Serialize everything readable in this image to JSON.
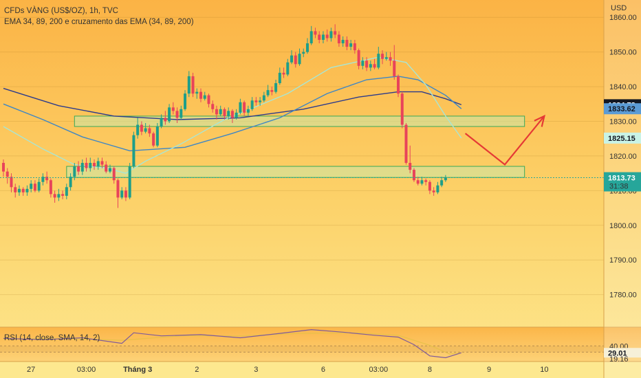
{
  "chart_data": {
    "type": "candlestick",
    "title": "CFDs VÀNG (US$/OZ), 1h, TVC",
    "subtitle": "EMA 34, 89, 200 e cruzamento das EMA (34, 89, 200)",
    "currency_label": "USD",
    "y_ticks": [
      "1860.00",
      "1850.00",
      "1840.00",
      "1830.00",
      "1820.00",
      "1810.00",
      "1800.00",
      "1790.00",
      "1780.00"
    ],
    "x_ticks": [
      "27",
      "03:00",
      "Tháng 3",
      "2",
      "3",
      "6",
      "03:00",
      "8",
      "9",
      "10"
    ],
    "ylim": [
      1771,
      1865
    ],
    "price_tags": [
      {
        "label": "1834.78",
        "value": 1834.78,
        "bg": "#131722",
        "fg": "#ffffff"
      },
      {
        "label": "1833.62",
        "value": 1833.62,
        "bg": "#5b9bd5",
        "fg": "#131722"
      },
      {
        "label": "1825.15",
        "value": 1825.15,
        "bg": "#c9f3e6",
        "fg": "#131722"
      }
    ],
    "current_price": {
      "label": "1813.73",
      "countdown": "31:38",
      "value": 1813.73,
      "bg": "#26a69a"
    },
    "candles": [
      [
        1818,
        1815.5,
        1819,
        1814
      ],
      [
        1815.5,
        1814,
        1816.5,
        1812
      ],
      [
        1814,
        1811,
        1815,
        1809.5
      ],
      [
        1811,
        1809.5,
        1812,
        1808
      ],
      [
        1809.5,
        1810.5,
        1811.5,
        1808.5
      ],
      [
        1810.5,
        1809.5,
        1811,
        1808.5
      ],
      [
        1809.5,
        1810.5,
        1811.5,
        1808.5
      ],
      [
        1810.5,
        1812,
        1813,
        1809.5
      ],
      [
        1812,
        1810,
        1813,
        1809.5
      ],
      [
        1810,
        1812.5,
        1813.5,
        1809.5
      ],
      [
        1812.5,
        1814,
        1815,
        1811.5
      ],
      [
        1814,
        1813,
        1815.5,
        1812
      ],
      [
        1813,
        1809,
        1813.5,
        1808
      ],
      [
        1809,
        1808,
        1810,
        1806.5
      ],
      [
        1808,
        1809,
        1810.5,
        1807
      ],
      [
        1809,
        1808.5,
        1810,
        1807.5
      ],
      [
        1808.5,
        1811,
        1812,
        1807.5
      ],
      [
        1811,
        1814,
        1815,
        1810
      ],
      [
        1814,
        1817,
        1818,
        1813
      ],
      [
        1817,
        1815.5,
        1818.5,
        1814.5
      ],
      [
        1815.5,
        1818,
        1819,
        1814.5
      ],
      [
        1818,
        1816.5,
        1819.5,
        1815.5
      ],
      [
        1816.5,
        1818,
        1819.5,
        1815.5
      ],
      [
        1818,
        1817,
        1819,
        1816
      ],
      [
        1817,
        1818.5,
        1819.5,
        1816
      ],
      [
        1818.5,
        1817.5,
        1819.5,
        1816.5
      ],
      [
        1817.5,
        1815.5,
        1818.5,
        1815
      ],
      [
        1815.5,
        1816.5,
        1817.5,
        1815
      ],
      [
        1816.5,
        1813,
        1817,
        1812
      ],
      [
        1813,
        1808,
        1813.5,
        1805
      ],
      [
        1808,
        1810,
        1811,
        1807.5
      ],
      [
        1810,
        1808,
        1811,
        1807
      ],
      [
        1808,
        1817,
        1818,
        1807.5
      ],
      [
        1817,
        1826,
        1827,
        1816.5
      ],
      [
        1826,
        1829,
        1831,
        1825
      ],
      [
        1829,
        1827,
        1830,
        1826
      ],
      [
        1827,
        1828,
        1829.5,
        1826.5
      ],
      [
        1828,
        1826.5,
        1829,
        1825.5
      ],
      [
        1826.5,
        1823,
        1827,
        1822.5
      ],
      [
        1823,
        1828.5,
        1829.5,
        1822.5
      ],
      [
        1828.5,
        1831,
        1832,
        1828
      ],
      [
        1831,
        1830,
        1833,
        1829
      ],
      [
        1830,
        1834,
        1835,
        1829.5
      ],
      [
        1834,
        1833,
        1835.5,
        1832
      ],
      [
        1833,
        1831,
        1834,
        1829.5
      ],
      [
        1831,
        1833.5,
        1834.5,
        1830.5
      ],
      [
        1833.5,
        1838,
        1839,
        1833
      ],
      [
        1838,
        1843,
        1844.5,
        1837
      ],
      [
        1843,
        1838,
        1844,
        1837
      ],
      [
        1838,
        1838.5,
        1839.5,
        1836.5
      ],
      [
        1838.5,
        1836.5,
        1839.5,
        1835.5
      ],
      [
        1836.5,
        1837.5,
        1838.5,
        1836
      ],
      [
        1837.5,
        1835,
        1838,
        1834
      ],
      [
        1835,
        1833.5,
        1836,
        1832.5
      ],
      [
        1833.5,
        1832,
        1834.5,
        1830.5
      ],
      [
        1832,
        1833.5,
        1834.5,
        1831.5
      ],
      [
        1833.5,
        1831.5,
        1834,
        1830.5
      ],
      [
        1831.5,
        1833,
        1834,
        1830.5
      ],
      [
        1833,
        1831,
        1833.5,
        1829.5
      ],
      [
        1831,
        1832.5,
        1833.5,
        1830.5
      ],
      [
        1832.5,
        1835.5,
        1836.5,
        1832
      ],
      [
        1835.5,
        1832.5,
        1836,
        1831.5
      ],
      [
        1832.5,
        1833.5,
        1834.5,
        1831.5
      ],
      [
        1833.5,
        1836,
        1837,
        1833
      ],
      [
        1836,
        1835.5,
        1837,
        1834.5
      ],
      [
        1835.5,
        1836,
        1837,
        1834.5
      ],
      [
        1836,
        1837.5,
        1838.5,
        1835.5
      ],
      [
        1837.5,
        1839,
        1840.5,
        1837
      ],
      [
        1839,
        1838.5,
        1840,
        1837.5
      ],
      [
        1838.5,
        1841,
        1842,
        1838
      ],
      [
        1841,
        1844,
        1845.5,
        1840.5
      ],
      [
        1844,
        1843.5,
        1845.5,
        1842.5
      ],
      [
        1843.5,
        1847,
        1848,
        1843
      ],
      [
        1847,
        1849,
        1850.5,
        1846.5
      ],
      [
        1849,
        1846.5,
        1850,
        1845.5
      ],
      [
        1846.5,
        1849.5,
        1851,
        1846
      ],
      [
        1849.5,
        1850,
        1851,
        1848.5
      ],
      [
        1850,
        1852.5,
        1854,
        1849.5
      ],
      [
        1852.5,
        1856,
        1857.5,
        1852
      ],
      [
        1856,
        1855,
        1857,
        1854
      ],
      [
        1855,
        1853.5,
        1856,
        1852.5
      ],
      [
        1853.5,
        1855,
        1856,
        1852.5
      ],
      [
        1855,
        1854,
        1856.5,
        1853
      ],
      [
        1854,
        1856,
        1857,
        1853
      ],
      [
        1856,
        1855,
        1858,
        1854
      ],
      [
        1855,
        1852.5,
        1856,
        1851.5
      ],
      [
        1852.5,
        1853.5,
        1854.5,
        1851.5
      ],
      [
        1853.5,
        1851.5,
        1854.5,
        1850.5
      ],
      [
        1851.5,
        1852.5,
        1853.5,
        1850.5
      ],
      [
        1852.5,
        1850.5,
        1853.5,
        1849.5
      ],
      [
        1850.5,
        1846,
        1851,
        1845
      ],
      [
        1846,
        1847.5,
        1848.5,
        1845
      ],
      [
        1847.5,
        1845.5,
        1848.5,
        1844.5
      ],
      [
        1845.5,
        1846.5,
        1847.5,
        1844.5
      ],
      [
        1846.5,
        1845.5,
        1848,
        1845
      ],
      [
        1845.5,
        1849.5,
        1851.5,
        1845
      ],
      [
        1849.5,
        1848,
        1850.5,
        1846.5
      ],
      [
        1848,
        1848.5,
        1850,
        1847.5
      ],
      [
        1848.5,
        1847.5,
        1850,
        1846
      ],
      [
        1847.5,
        1843,
        1852,
        1842
      ],
      [
        1843,
        1838,
        1843.5,
        1837
      ],
      [
        1838,
        1829,
        1838.5,
        1828
      ],
      [
        1829,
        1818,
        1829.5,
        1817.5
      ],
      [
        1818,
        1816,
        1823,
        1815
      ],
      [
        1816,
        1813,
        1816.5,
        1812.5
      ],
      [
        1813,
        1812,
        1814,
        1811.5
      ],
      [
        1812,
        1813,
        1814,
        1811.5
      ],
      [
        1813,
        1812.5,
        1813.5,
        1811.5
      ],
      [
        1812.5,
        1810,
        1813,
        1809
      ],
      [
        1810,
        1809.5,
        1811,
        1808.5
      ],
      [
        1809.5,
        1811.5,
        1812.5,
        1809
      ],
      [
        1811.5,
        1813,
        1814,
        1811
      ],
      [
        1813,
        1813.73,
        1814.5,
        1812.5
      ]
    ],
    "ema34": [
      [
        0,
        1828.5
      ],
      [
        10,
        1822
      ],
      [
        18,
        1817.5
      ],
      [
        26,
        1816.5
      ],
      [
        31,
        1815
      ],
      [
        36,
        1818.5
      ],
      [
        45,
        1823.5
      ],
      [
        56,
        1830.5
      ],
      [
        72,
        1838
      ],
      [
        83,
        1845.5
      ],
      [
        95,
        1848.5
      ],
      [
        102,
        1847
      ],
      [
        107,
        1840.5
      ],
      [
        112,
        1831.5
      ],
      [
        116,
        1825.15
      ]
    ],
    "ema89": [
      [
        0,
        1835
      ],
      [
        10,
        1830.5
      ],
      [
        20,
        1825.5
      ],
      [
        32,
        1821.5
      ],
      [
        46,
        1822.5
      ],
      [
        58,
        1826.5
      ],
      [
        70,
        1831
      ],
      [
        82,
        1838
      ],
      [
        92,
        1842
      ],
      [
        100,
        1843
      ],
      [
        105,
        1842
      ],
      [
        112,
        1837.5
      ],
      [
        116,
        1833.62
      ]
    ],
    "ema200": [
      [
        0,
        1839.5
      ],
      [
        14,
        1834.5
      ],
      [
        28,
        1831.5
      ],
      [
        44,
        1830.5
      ],
      [
        60,
        1831
      ],
      [
        76,
        1833.5
      ],
      [
        90,
        1837
      ],
      [
        100,
        1838.5
      ],
      [
        106,
        1838.5
      ],
      [
        112,
        1836.5
      ],
      [
        116,
        1834.78
      ]
    ],
    "zones": [
      {
        "from": 1828.5,
        "to": 1831.5,
        "i_start": 18,
        "i_end": 132
      },
      {
        "from": 1813.8,
        "to": 1817,
        "i_start": 16,
        "i_end": 132
      }
    ],
    "projection": [
      [
        117,
        1826.5
      ],
      [
        127,
        1817.5
      ],
      [
        137,
        1831.5
      ]
    ],
    "rsi": {
      "title": "RSI (14, close, SMA, 14, 2)",
      "ticks": [
        "40.00",
        "29.01",
        "19.16"
      ],
      "value_label": "29.01",
      "ylim": [
        15,
        70
      ],
      "rsi_points": [
        [
          0,
          52
        ],
        [
          10,
          50
        ],
        [
          20,
          53
        ],
        [
          30,
          44
        ],
        [
          33,
          61
        ],
        [
          40,
          56
        ],
        [
          50,
          58
        ],
        [
          60,
          53
        ],
        [
          70,
          60
        ],
        [
          78,
          66
        ],
        [
          86,
          62
        ],
        [
          94,
          57
        ],
        [
          100,
          54
        ],
        [
          104,
          42
        ],
        [
          108,
          24
        ],
        [
          112,
          21
        ],
        [
          116,
          29
        ]
      ],
      "sma_points": [
        [
          0,
          51
        ],
        [
          15,
          52
        ],
        [
          30,
          49
        ],
        [
          45,
          56
        ],
        [
          60,
          56
        ],
        [
          75,
          60
        ],
        [
          90,
          61
        ],
        [
          100,
          57
        ],
        [
          108,
          41
        ],
        [
          113,
          27
        ],
        [
          116,
          29
        ]
      ]
    }
  }
}
